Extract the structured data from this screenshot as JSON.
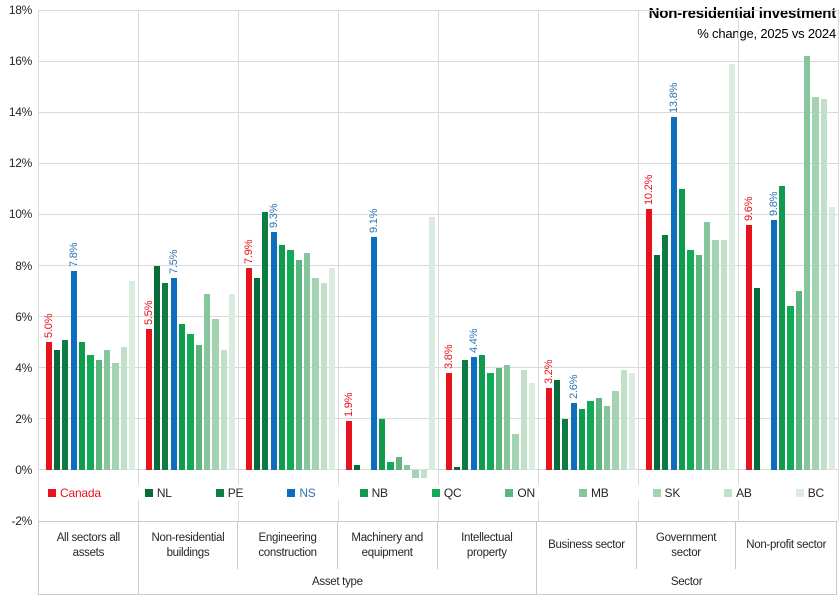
{
  "title": "Non-residential investment",
  "subtitle": "% change, 2025 vs 2024",
  "legend": {
    "items": [
      "Canada",
      "NL",
      "PE",
      "NS",
      "NB",
      "QC",
      "ON",
      "MB",
      "SK",
      "AB",
      "BC"
    ]
  },
  "chart_data": {
    "type": "bar",
    "title": "Non-residential investment",
    "subtitle": "% change, 2025 vs 2024",
    "ylim": [
      -2,
      18
    ],
    "ytick_step": 2,
    "ytick_labels": [
      "18%",
      "16%",
      "14%",
      "12%",
      "10%",
      "8%",
      "6%",
      "4%",
      "2%",
      "0%",
      "-2%"
    ],
    "grid": true,
    "legend_position": "bottom",
    "categories": [
      "All sectors all assets",
      "Non-residential buildings",
      "Engineering construction",
      "Machinery and equipment",
      "Intellectual property",
      "Business sector",
      "Government sector",
      "Non-profit sector"
    ],
    "axis_groups": [
      {
        "label": "",
        "span_categories": 1
      },
      {
        "label": "Asset type",
        "span_categories": 4
      },
      {
        "label": "Sector",
        "span_categories": 3
      }
    ],
    "series": [
      {
        "name": "Canada",
        "color": "#e8121d",
        "label_text_color": "#e8121d",
        "show_data_labels": true,
        "values": [
          5.0,
          5.5,
          7.9,
          1.9,
          3.8,
          3.2,
          10.2,
          9.6
        ],
        "data_labels": [
          "5.0%",
          "5.5%",
          "7.9%",
          "1.9%",
          "3.8%",
          "3.2%",
          "10.2%",
          "9.6%"
        ]
      },
      {
        "name": "NL",
        "color": "#086b3a",
        "values": [
          4.7,
          8.0,
          7.5,
          0.2,
          0.1,
          3.5,
          8.4,
          7.1
        ]
      },
      {
        "name": "PE",
        "color": "#0e7d44",
        "values": [
          5.1,
          7.3,
          10.1,
          0.0,
          4.3,
          2.0,
          9.2,
          0.0
        ]
      },
      {
        "name": "NS",
        "color": "#0e6ebe",
        "label_text_color": "#2e75b6",
        "show_data_labels": true,
        "values": [
          7.8,
          7.5,
          9.3,
          9.1,
          4.4,
          2.6,
          13.8,
          9.8
        ],
        "data_labels": [
          "7.8%",
          "7.5%",
          "9.3%",
          "9.1%",
          "4.4%",
          "2.6%",
          "13.8%",
          "9.8%"
        ]
      },
      {
        "name": "NB",
        "color": "#109a4e",
        "values": [
          5.0,
          5.7,
          8.8,
          2.0,
          4.5,
          2.4,
          11.0,
          11.1
        ]
      },
      {
        "name": "QC",
        "color": "#13aa56",
        "values": [
          4.5,
          5.3,
          8.6,
          0.3,
          3.8,
          2.7,
          8.6,
          6.4
        ]
      },
      {
        "name": "ON",
        "color": "#5bb57d",
        "values": [
          4.3,
          4.9,
          8.2,
          0.5,
          4.0,
          2.8,
          8.4,
          7.0
        ]
      },
      {
        "name": "MB",
        "color": "#86c69c",
        "values": [
          4.7,
          6.9,
          8.5,
          0.2,
          4.1,
          2.5,
          9.7,
          16.2
        ]
      },
      {
        "name": "SK",
        "color": "#a3d3b2",
        "values": [
          4.2,
          5.9,
          7.5,
          -0.3,
          1.4,
          3.1,
          9.0,
          14.6
        ]
      },
      {
        "name": "AB",
        "color": "#c1e0ca",
        "values": [
          4.8,
          4.7,
          7.3,
          -0.3,
          3.9,
          3.9,
          9.0,
          14.5
        ]
      },
      {
        "name": "BC",
        "color": "#d9ecdf",
        "values": [
          7.4,
          6.9,
          7.9,
          9.9,
          3.4,
          3.8,
          15.9,
          10.3
        ]
      }
    ]
  }
}
